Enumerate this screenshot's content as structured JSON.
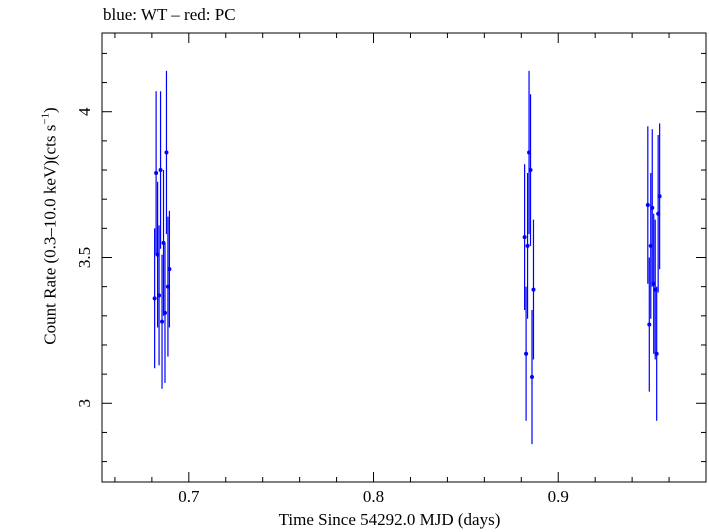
{
  "chart_data": {
    "type": "scatter",
    "title": "blue: WT – red: PC",
    "xlabel": "Time Since 54292.0 MJD (days)",
    "ylabel_main": "Count Rate (0.3–10.0 keV)(cts s",
    "ylabel_sup": "−1",
    "ylabel_end": ")",
    "xlim": [
      0.653,
      0.98
    ],
    "ylim": [
      2.73,
      4.27
    ],
    "xticks": [
      0.7,
      0.8,
      0.9
    ],
    "xtick_labels": [
      "0.7",
      "0.8",
      "0.9"
    ],
    "yticks": [
      3,
      3.5,
      4
    ],
    "ytick_labels": [
      "3",
      "3.5",
      "4"
    ],
    "series": [
      {
        "color": "#0000ff",
        "points": [
          {
            "x": 0.6815,
            "y": 3.36,
            "err": 0.24
          },
          {
            "x": 0.6823,
            "y": 3.79,
            "err": 0.28
          },
          {
            "x": 0.6831,
            "y": 3.51,
            "err": 0.25
          },
          {
            "x": 0.6839,
            "y": 3.37,
            "err": 0.24
          },
          {
            "x": 0.6847,
            "y": 3.8,
            "err": 0.27
          },
          {
            "x": 0.6855,
            "y": 3.28,
            "err": 0.23
          },
          {
            "x": 0.6863,
            "y": 3.55,
            "err": 0.25
          },
          {
            "x": 0.6871,
            "y": 3.31,
            "err": 0.24
          },
          {
            "x": 0.6879,
            "y": 3.86,
            "err": 0.28
          },
          {
            "x": 0.6887,
            "y": 3.4,
            "err": 0.24
          },
          {
            "x": 0.6895,
            "y": 3.46,
            "err": 0.2
          },
          {
            "x": 0.8818,
            "y": 3.57,
            "err": 0.25
          },
          {
            "x": 0.8826,
            "y": 3.17,
            "err": 0.23
          },
          {
            "x": 0.8834,
            "y": 3.54,
            "err": 0.25
          },
          {
            "x": 0.8842,
            "y": 3.86,
            "err": 0.28
          },
          {
            "x": 0.885,
            "y": 3.8,
            "err": 0.26
          },
          {
            "x": 0.8858,
            "y": 3.09,
            "err": 0.23
          },
          {
            "x": 0.8866,
            "y": 3.39,
            "err": 0.24
          },
          {
            "x": 0.9485,
            "y": 3.68,
            "err": 0.27
          },
          {
            "x": 0.9493,
            "y": 3.27,
            "err": 0.23
          },
          {
            "x": 0.9501,
            "y": 3.54,
            "err": 0.25
          },
          {
            "x": 0.9509,
            "y": 3.67,
            "err": 0.27
          },
          {
            "x": 0.9517,
            "y": 3.41,
            "err": 0.24
          },
          {
            "x": 0.9525,
            "y": 3.39,
            "err": 0.24
          },
          {
            "x": 0.9533,
            "y": 3.17,
            "err": 0.23
          },
          {
            "x": 0.9541,
            "y": 3.65,
            "err": 0.27
          },
          {
            "x": 0.9549,
            "y": 3.71,
            "err": 0.25
          }
        ]
      }
    ]
  }
}
